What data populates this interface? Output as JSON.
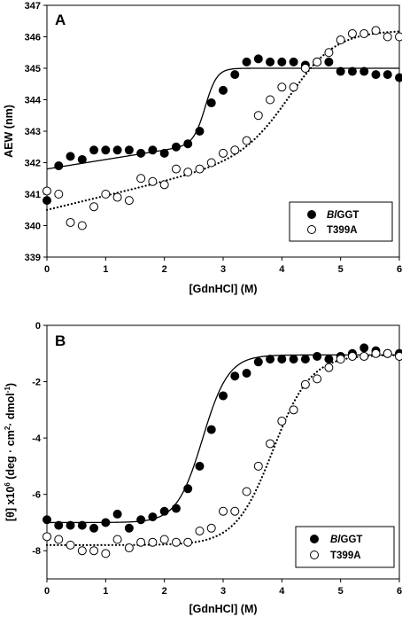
{
  "chart_data": [
    {
      "type": "scatter",
      "panel_label": "A",
      "xlabel": "[GdnHCl] (M)",
      "ylabel": "AEW (nm)",
      "xlim": [
        0,
        6
      ],
      "ylim": [
        339,
        347
      ],
      "xticks": [
        0,
        1,
        2,
        3,
        4,
        5,
        6
      ],
      "yticks": [
        339,
        340,
        341,
        342,
        343,
        344,
        345,
        346,
        347
      ],
      "legend_placement": "bottom-right",
      "series": [
        {
          "name_parts": [
            "Bl",
            "GGT"
          ],
          "marker": "filled-circle",
          "fit_line": "solid",
          "x": [
            0,
            0.2,
            0.4,
            0.6,
            0.8,
            1.0,
            1.2,
            1.4,
            1.6,
            1.8,
            2.0,
            2.2,
            2.4,
            2.6,
            2.8,
            3.0,
            3.2,
            3.4,
            3.6,
            3.8,
            4.0,
            4.2,
            4.4,
            4.6,
            4.8,
            5.0,
            5.2,
            5.4,
            5.6,
            5.8,
            6.0
          ],
          "y": [
            340.8,
            341.9,
            342.2,
            342.1,
            342.4,
            342.4,
            342.4,
            342.4,
            342.3,
            342.4,
            342.3,
            342.5,
            342.6,
            343.0,
            343.9,
            344.3,
            344.8,
            345.2,
            345.3,
            345.2,
            345.2,
            345.2,
            345.1,
            345.2,
            345.2,
            344.9,
            344.9,
            344.9,
            344.8,
            344.8,
            344.7
          ],
          "fit_params": {
            "y0": 341.8,
            "slope0": 0.3,
            "y1": 345.0,
            "slope1": 0.0,
            "midpoint": 2.7,
            "width": 0.1
          }
        },
        {
          "name": "T399A",
          "marker": "open-circle",
          "fit_line": "dotted",
          "x": [
            0,
            0.2,
            0.4,
            0.6,
            0.8,
            1.0,
            1.2,
            1.4,
            1.6,
            1.8,
            2.0,
            2.2,
            2.4,
            2.6,
            2.8,
            3.0,
            3.2,
            3.4,
            3.6,
            3.8,
            4.0,
            4.2,
            4.4,
            4.6,
            4.8,
            5.0,
            5.2,
            5.4,
            5.6,
            5.8,
            6.0
          ],
          "y": [
            341.1,
            341.0,
            340.1,
            340.0,
            340.6,
            341.0,
            340.9,
            340.8,
            341.5,
            341.4,
            341.3,
            341.8,
            341.7,
            341.8,
            342.0,
            342.3,
            342.4,
            342.7,
            343.5,
            344.0,
            344.4,
            344.4,
            345.0,
            345.2,
            345.5,
            345.9,
            346.1,
            346.1,
            346.2,
            346.0,
            346.0
          ],
          "fit_params": {
            "y0": 340.5,
            "slope0": 0.45,
            "y1": 346.2,
            "slope1": 0.0,
            "midpoint": 4.2,
            "width": 0.4
          }
        }
      ]
    },
    {
      "type": "scatter",
      "panel_label": "B",
      "xlabel": "[GdnHCl] (M)",
      "ylabel_parts": [
        "[θ] x10",
        "6",
        " (deg · cm",
        "2",
        "· dmol",
        "-1",
        ")"
      ],
      "xlim": [
        0,
        6
      ],
      "ylim": [
        -9,
        0
      ],
      "xticks": [
        0,
        1,
        2,
        3,
        4,
        5,
        6
      ],
      "yticks": [
        -8,
        -6,
        -4,
        -2,
        0
      ],
      "legend_placement": "bottom-right",
      "series": [
        {
          "name_parts": [
            "Bl",
            "GGT"
          ],
          "marker": "filled-circle",
          "fit_line": "solid",
          "x": [
            0,
            0.2,
            0.4,
            0.6,
            0.8,
            1.0,
            1.2,
            1.4,
            1.6,
            1.8,
            2.0,
            2.2,
            2.4,
            2.6,
            2.8,
            3.0,
            3.2,
            3.4,
            3.6,
            3.8,
            4.0,
            4.2,
            4.4,
            4.6,
            4.8,
            5.0,
            5.2,
            5.4,
            5.6,
            5.8,
            6.0
          ],
          "y": [
            -6.9,
            -7.1,
            -7.1,
            -7.1,
            -7.2,
            -7.0,
            -6.7,
            -7.2,
            -6.9,
            -6.8,
            -6.6,
            -6.5,
            -5.8,
            -5.0,
            -3.7,
            -2.5,
            -1.8,
            -1.7,
            -1.3,
            -1.2,
            -1.2,
            -1.2,
            -1.2,
            -1.1,
            -1.2,
            -1.1,
            -1.0,
            -0.8,
            -0.9,
            -1.0,
            -1.0
          ],
          "fit_params": {
            "y0": -7.0,
            "slope0": 0,
            "y1": -1.05,
            "slope1": 0,
            "midpoint": 2.65,
            "width": 0.22
          }
        },
        {
          "name": "T399A",
          "marker": "open-circle",
          "fit_line": "dotted",
          "x": [
            0,
            0.2,
            0.4,
            0.6,
            0.8,
            1.0,
            1.2,
            1.4,
            1.6,
            1.8,
            2.0,
            2.2,
            2.4,
            2.6,
            2.8,
            3.0,
            3.2,
            3.4,
            3.6,
            3.8,
            4.0,
            4.2,
            4.4,
            4.6,
            4.8,
            5.0,
            5.2,
            5.4,
            5.6,
            5.8,
            6.0
          ],
          "y": [
            -7.5,
            -7.6,
            -7.8,
            -8.0,
            -8.0,
            -8.1,
            -7.6,
            -7.9,
            -7.7,
            -7.7,
            -7.6,
            -7.7,
            -7.7,
            -7.3,
            -7.2,
            -6.6,
            -6.6,
            -5.9,
            -5.0,
            -4.2,
            -3.4,
            -3.0,
            -2.1,
            -1.9,
            -1.5,
            -1.2,
            -1.1,
            -1.1,
            -1.0,
            -1.0,
            -1.1
          ],
          "fit_params": {
            "y0": -7.8,
            "slope0": 0,
            "y1": -1.05,
            "slope1": 0,
            "midpoint": 3.85,
            "width": 0.32
          }
        }
      ]
    }
  ]
}
